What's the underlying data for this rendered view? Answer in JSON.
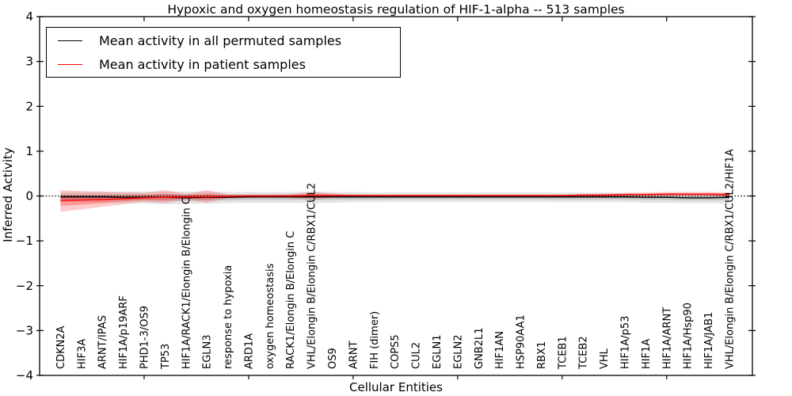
{
  "chart_data": {
    "type": "line",
    "title": "Hypoxic and oxygen homeostasis regulation of HIF-1-alpha -- 513 samples",
    "xlabel": "Cellular Entities",
    "ylabel": "Inferred Activity",
    "ylim": [
      -4,
      4
    ],
    "xlim": [
      0,
      34.1
    ],
    "grid": false,
    "legend_position": "upper left",
    "y_ticks": [
      -4,
      -3,
      -2,
      -1,
      0,
      1,
      2,
      3,
      4
    ],
    "y_tick_labels": [
      "−4",
      "−3",
      "−2",
      "−1",
      "0",
      "1",
      "2",
      "3",
      "4"
    ],
    "x_tick_positions": [
      5,
      10,
      15,
      20,
      25,
      30
    ],
    "zero_line": {
      "y": 0,
      "style": "dotted",
      "color": "#000000"
    },
    "categories": [
      "CDKN2A",
      "HIF3A",
      "ARNT/IPAS",
      "HIF1A/p19ARF",
      "PHD1-3/OS9",
      "TP53",
      "HIF1A/RACK1/Elongin B/Elongin C",
      "EGLN3",
      "response to hypoxia",
      "ARD1A",
      "oxygen homeostasis",
      "RACK1/Elongin B/Elongin C",
      "VHL/Elongin B/Elongin C/RBX1/CUL2",
      "OS9",
      "ARNT",
      "FIH (dimer)",
      "COPS5",
      "CUL2",
      "EGLN1",
      "EGLN2",
      "GNB2L1",
      "HIF1AN",
      "HSP90AA1",
      "RBX1",
      "TCEB1",
      "TCEB2",
      "VHL",
      "HIF1A/p53",
      "HIF1A",
      "HIF1A/ARNT",
      "HIF1A/Hsp90",
      "HIF1A/JAB1",
      "VHL/Elongin B/Elongin C/RBX1/CUL2/HIF1A"
    ],
    "series": [
      {
        "name": "Mean activity in all permuted samples",
        "color": "#000000",
        "band_color": "#000000",
        "band_alpha": 0.1,
        "mean": [
          -0.02,
          -0.02,
          -0.02,
          -0.03,
          -0.03,
          -0.03,
          -0.04,
          -0.03,
          -0.03,
          -0.02,
          -0.02,
          -0.02,
          -0.02,
          -0.02,
          -0.02,
          -0.02,
          -0.02,
          -0.02,
          -0.02,
          -0.02,
          -0.02,
          -0.02,
          -0.02,
          -0.02,
          -0.02,
          -0.02,
          -0.02,
          -0.02,
          -0.03,
          -0.03,
          -0.04,
          -0.04,
          -0.03
        ],
        "band_upper": [
          0.09,
          0.09,
          0.09,
          0.1,
          0.1,
          0.1,
          0.1,
          0.1,
          0.09,
          0.09,
          0.09,
          0.09,
          0.1,
          0.09,
          0.09,
          0.08,
          0.08,
          0.08,
          0.08,
          0.08,
          0.08,
          0.08,
          0.08,
          0.08,
          0.08,
          0.08,
          0.08,
          0.07,
          0.06,
          0.06,
          0.06,
          0.06,
          0.07
        ],
        "band_lower": [
          -0.14,
          -0.14,
          -0.15,
          -0.16,
          -0.17,
          -0.18,
          -0.18,
          -0.17,
          -0.16,
          -0.15,
          -0.15,
          -0.15,
          -0.16,
          -0.15,
          -0.14,
          -0.14,
          -0.13,
          -0.13,
          -0.13,
          -0.13,
          -0.13,
          -0.13,
          -0.13,
          -0.13,
          -0.14,
          -0.14,
          -0.14,
          -0.14,
          -0.15,
          -0.15,
          -0.16,
          -0.16,
          -0.17
        ]
      },
      {
        "name": "Mean activity in patient samples",
        "color": "#ff0000",
        "band_color": "#ff0000",
        "band_alpha": 0.2,
        "mean": [
          -0.1,
          -0.09,
          -0.08,
          -0.06,
          -0.04,
          -0.03,
          -0.02,
          -0.02,
          -0.01,
          0.0,
          0.0,
          0.0,
          0.01,
          0.01,
          0.01,
          0.01,
          0.01,
          0.01,
          0.01,
          0.01,
          0.01,
          0.01,
          0.01,
          0.01,
          0.01,
          0.02,
          0.02,
          0.03,
          0.03,
          0.04,
          0.04,
          0.04,
          0.03
        ],
        "band_upper": [
          0.13,
          0.11,
          0.1,
          0.08,
          0.07,
          0.13,
          0.05,
          0.13,
          0.04,
          0.03,
          0.03,
          0.04,
          0.09,
          0.06,
          0.03,
          0.03,
          0.03,
          0.03,
          0.03,
          0.03,
          0.03,
          0.03,
          0.03,
          0.03,
          0.03,
          0.04,
          0.05,
          0.07,
          0.08,
          0.09,
          0.09,
          0.09,
          0.08
        ],
        "band_lower": [
          -0.35,
          -0.3,
          -0.24,
          -0.18,
          -0.13,
          -0.16,
          -0.08,
          -0.15,
          -0.05,
          -0.04,
          -0.03,
          -0.04,
          -0.08,
          -0.04,
          -0.02,
          -0.02,
          -0.02,
          -0.02,
          -0.02,
          -0.02,
          -0.02,
          -0.02,
          -0.02,
          -0.02,
          -0.02,
          -0.01,
          -0.01,
          0.0,
          0.0,
          0.0,
          0.0,
          0.0,
          -0.01
        ]
      }
    ]
  }
}
